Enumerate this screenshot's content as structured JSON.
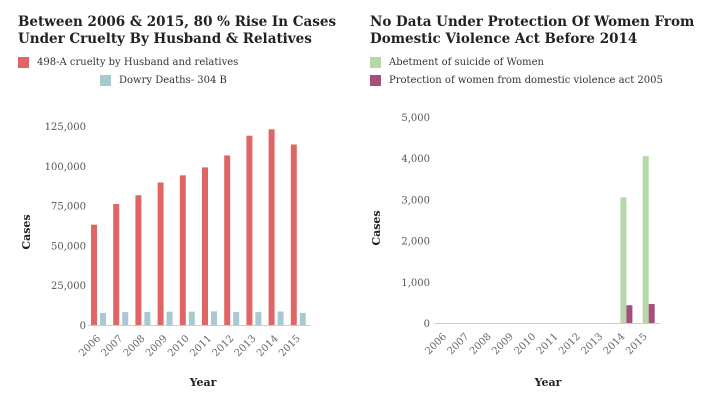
{
  "chart_data": [
    {
      "type": "bar",
      "title": "Between 2006 & 2015, 80 % Rise In Cases Under Cruelty By Husband & Relatives",
      "xlabel": "Year",
      "ylabel": "Cases",
      "ylim": [
        0,
        125000
      ],
      "yticks": [
        0,
        25000,
        50000,
        75000,
        100000,
        125000
      ],
      "ytick_labels": [
        "0",
        "25,000",
        "50,000",
        "75,000",
        "100,000",
        "125,000"
      ],
      "categories": [
        "2006",
        "2007",
        "2008",
        "2009",
        "2010",
        "2011",
        "2012",
        "2013",
        "2014",
        "2015"
      ],
      "series": [
        {
          "name": "498-A cruelty by Husband and relatives",
          "color": "#e06666",
          "values": [
            63000,
            76000,
            81500,
            89500,
            94000,
            99000,
            106500,
            118900,
            122900,
            113400
          ]
        },
        {
          "name": "Dowry Deaths- 304 B",
          "color": "#a9c9d0",
          "values": [
            7600,
            8100,
            8200,
            8400,
            8400,
            8600,
            8200,
            8100,
            8500,
            7600
          ]
        }
      ]
    },
    {
      "type": "bar",
      "title": "No Data Under Protection Of Women From Domestic Violence Act Before 2014",
      "xlabel": "Year",
      "ylabel": "Cases",
      "ylim": [
        0,
        5000
      ],
      "yticks": [
        0,
        1000,
        2000,
        3000,
        4000,
        5000
      ],
      "ytick_labels": [
        "0",
        "1,000",
        "2,000",
        "3,000",
        "4,000",
        "5,000"
      ],
      "categories": [
        "2006",
        "2007",
        "2008",
        "2009",
        "2010",
        "2011",
        "2012",
        "2013",
        "2014",
        "2015"
      ],
      "series": [
        {
          "name": "Abetment of suicide of Women",
          "color": "#b6d7a8",
          "values": [
            0,
            0,
            0,
            0,
            0,
            0,
            0,
            0,
            3050,
            4050
          ]
        },
        {
          "name": "Protection of women from domestic violence act 2005",
          "color": "#a64d79",
          "values": [
            0,
            0,
            0,
            0,
            0,
            0,
            0,
            0,
            430,
            460
          ]
        }
      ]
    }
  ]
}
